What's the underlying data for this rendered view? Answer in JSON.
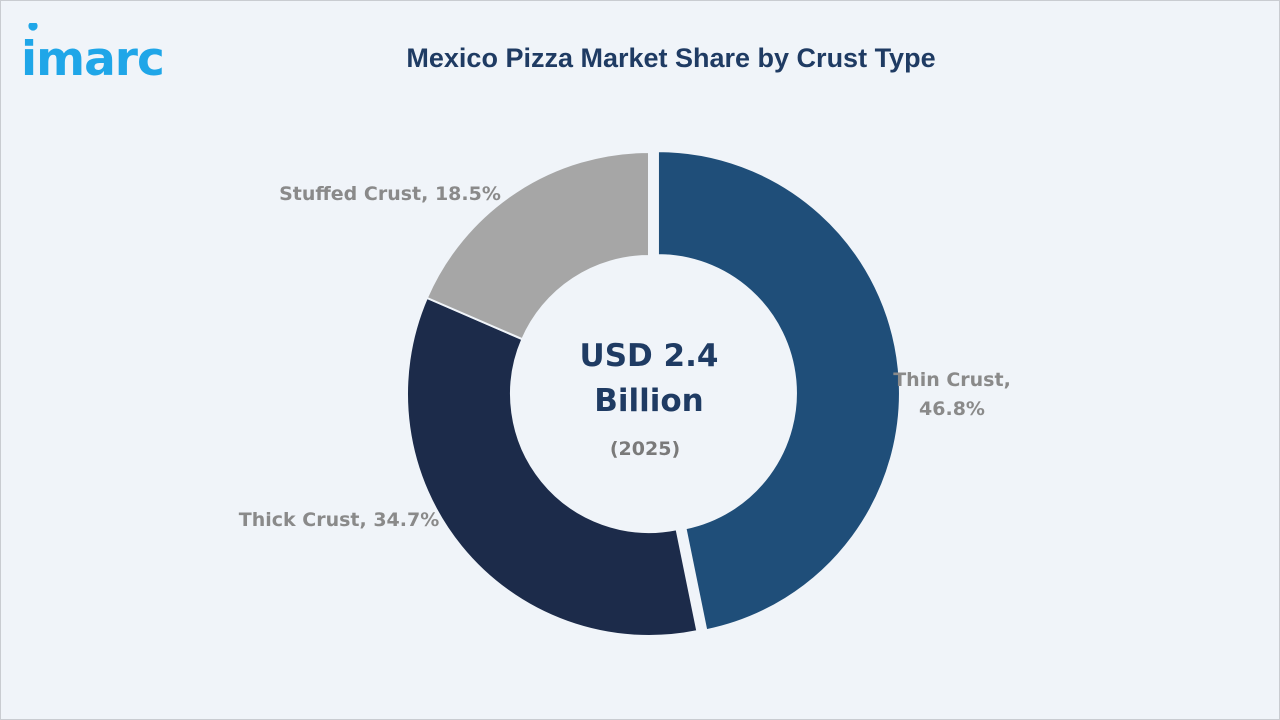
{
  "brand": {
    "logo_text": "imarc",
    "logo_color": "#1fa6e8"
  },
  "chart_data": {
    "type": "pie",
    "title": "Mexico Pizza Market Share by Crust Type",
    "donut": true,
    "center_text": {
      "line1": "USD 2.4",
      "line2": "Billion",
      "year": "(2025)"
    },
    "categories": [
      "Thin Crust",
      "Thick Crust",
      "Stuffed Crust"
    ],
    "values": [
      46.8,
      34.7,
      18.5
    ],
    "unit": "%",
    "labels": [
      "Thin Crust,",
      "46.8%",
      "Thick Crust, 34.7%",
      "Stuffed Crust, 18.5%"
    ],
    "colors": [
      "#1f4e79",
      "#1c2b4a",
      "#a6a6a6"
    ],
    "exploded": [
      "Thin Crust"
    ],
    "legend": "none"
  }
}
